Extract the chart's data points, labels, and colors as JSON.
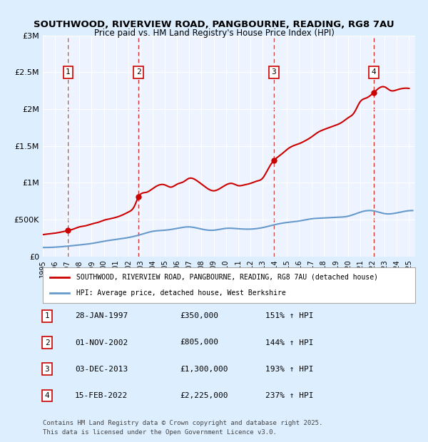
{
  "title_line1": "SOUTHWOOD, RIVERVIEW ROAD, PANGBOURNE, READING, RG8 7AU",
  "title_line2": "Price paid vs. HM Land Registry's House Price Index (HPI)",
  "ylabel_ticks": [
    "£0",
    "£500K",
    "£1M",
    "£1.5M",
    "£2M",
    "£2.5M",
    "£3M"
  ],
  "ytick_values": [
    0,
    500000,
    1000000,
    1500000,
    2000000,
    2500000,
    3000000
  ],
  "ylim": [
    0,
    3000000
  ],
  "xlim_start": 1995.0,
  "xlim_end": 2025.5,
  "transactions": [
    {
      "num": 1,
      "date_label": "28-JAN-1997",
      "x": 1997.07,
      "price": 350000,
      "pct": "151% ↑ HPI"
    },
    {
      "num": 2,
      "date_label": "01-NOV-2002",
      "x": 2002.83,
      "price": 805000,
      "pct": "144% ↑ HPI"
    },
    {
      "num": 3,
      "date_label": "03-DEC-2013",
      "x": 2013.92,
      "price": 1300000,
      "pct": "193% ↑ HPI"
    },
    {
      "num": 4,
      "date_label": "15-FEB-2022",
      "x": 2022.12,
      "price": 2225000,
      "pct": "237% ↑ HPI"
    }
  ],
  "red_line_color": "#cc0000",
  "blue_line_color": "#6699cc",
  "background_color": "#ddeeff",
  "plot_bg_color": "#eef4ff",
  "legend_label_red": "SOUTHWOOD, RIVERVIEW ROAD, PANGBOURNE, READING, RG8 7AU (detached house)",
  "legend_label_blue": "HPI: Average price, detached house, West Berkshire",
  "footer_line1": "Contains HM Land Registry data © Crown copyright and database right 2025.",
  "footer_line2": "This data is licensed under the Open Government Licence v3.0.",
  "table_rows": [
    [
      "1",
      "28-JAN-1997",
      "£350,000",
      "151% ↑ HPI"
    ],
    [
      "2",
      "01-NOV-2002",
      "£805,000",
      "144% ↑ HPI"
    ],
    [
      "3",
      "03-DEC-2013",
      "£1,300,000",
      "193% ↑ HPI"
    ],
    [
      "4",
      "15-FEB-2022",
      "£2,225,000",
      "237% ↑ HPI"
    ]
  ]
}
